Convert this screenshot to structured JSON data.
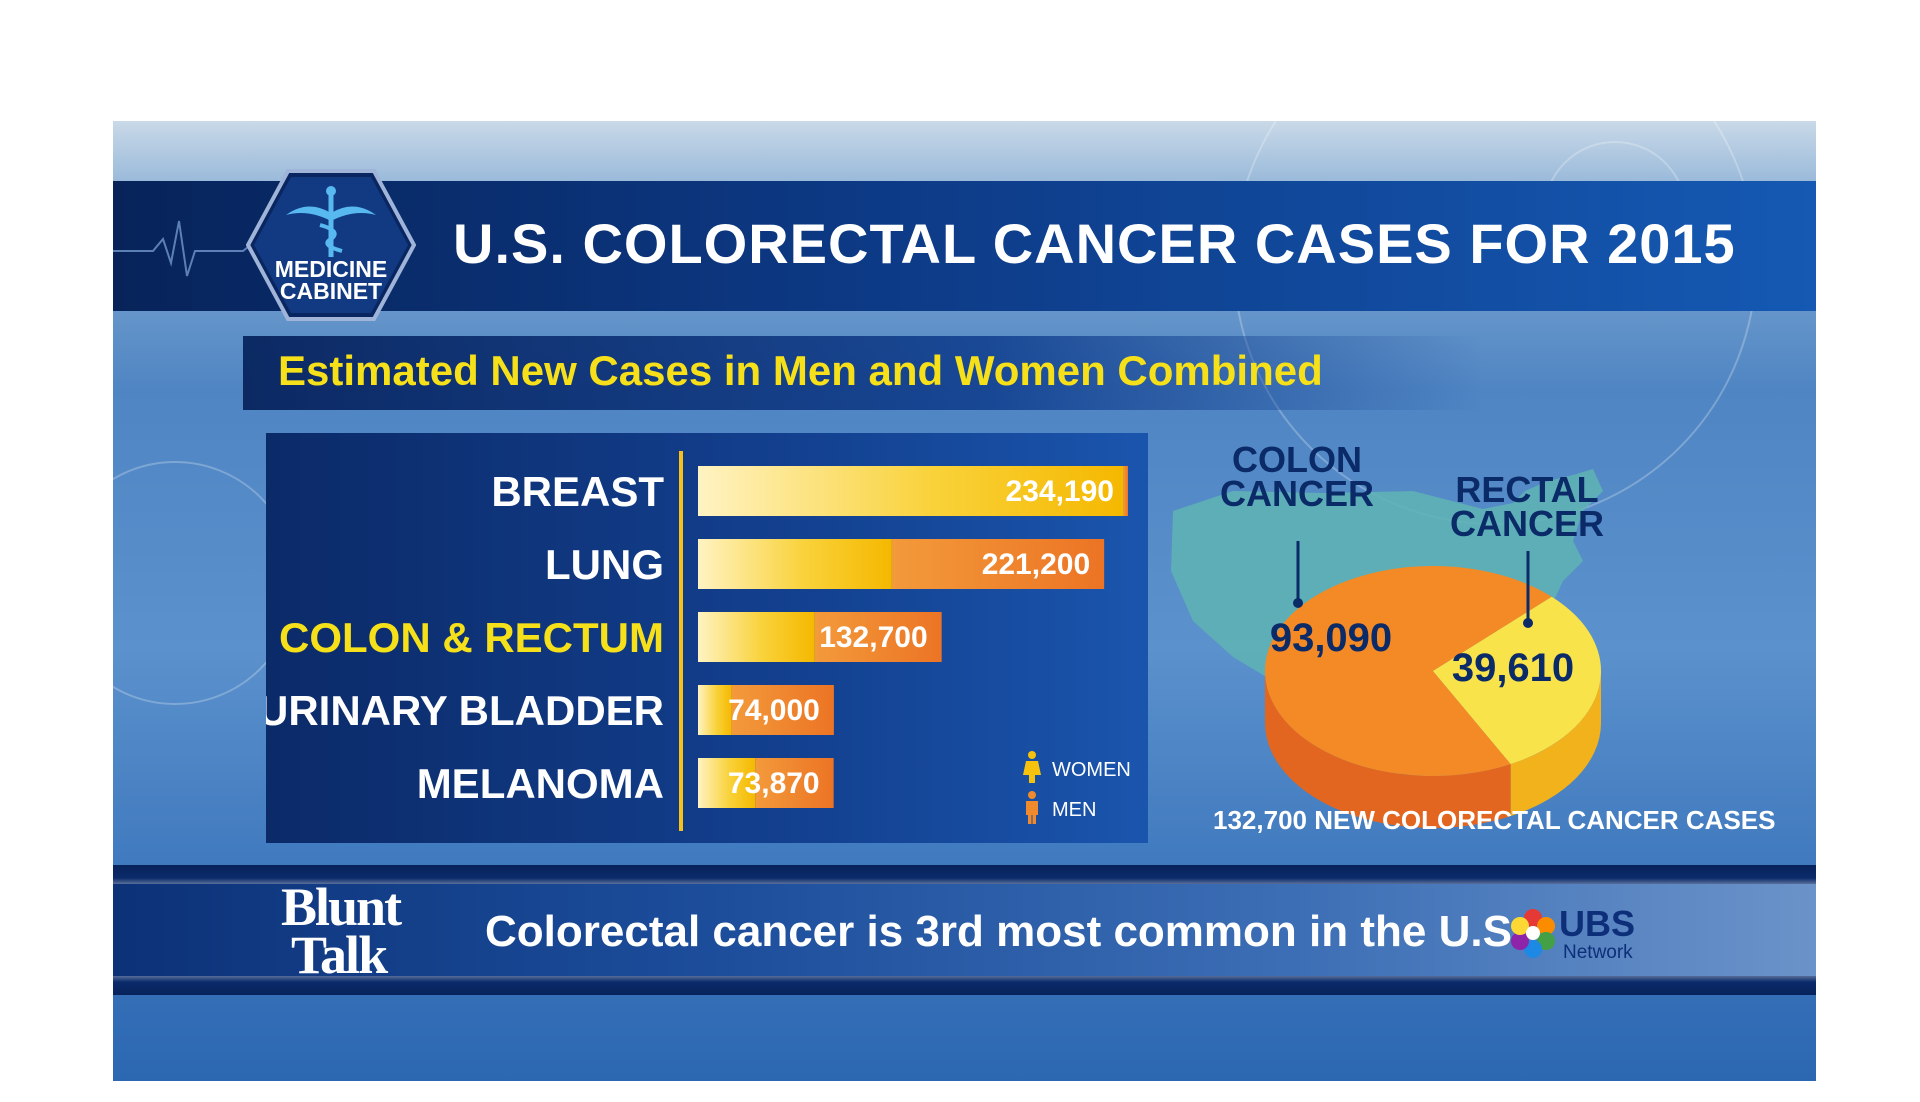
{
  "header": {
    "logo_line1": "MEDICINE",
    "logo_line2": "CABINET",
    "title": "U.S. COLORECTAL CANCER CASES FOR 2015"
  },
  "subtitle": "Estimated New Cases in Men and Women Combined",
  "legend": {
    "women": "WOMEN",
    "men": "MEN"
  },
  "colors": {
    "women": "#f7c20e",
    "men": "#f08a2c",
    "highlight": "#f6e01a",
    "navy": "#0b2a68"
  },
  "chart_data": [
    {
      "type": "bar",
      "orientation": "horizontal",
      "stacked": true,
      "categories": [
        "BREAST",
        "LUNG",
        "COLON & RECTUM",
        "URINARY BLADDER",
        "MELANOMA"
      ],
      "values": [
        234190,
        221200,
        132700,
        74000,
        73870
      ],
      "value_labels": [
        "234,190",
        "221,200",
        "132,700",
        "74,000",
        "73,870"
      ],
      "highlight_category": "COLON & RECTUM",
      "series": [
        {
          "name": "WOMEN",
          "values": [
            231840,
            105590,
            63610,
            18300,
            31200
          ]
        },
        {
          "name": "MEN",
          "values": [
            2350,
            115610,
            69090,
            55700,
            42670
          ]
        }
      ],
      "legend_position": "bottom-right",
      "grid": false
    },
    {
      "type": "pie",
      "labels": [
        "COLON CANCER",
        "RECTAL CANCER"
      ],
      "values": [
        93090,
        39610
      ],
      "value_labels": [
        "93,090",
        "39,610"
      ],
      "colors": [
        "#f48a25",
        "#f9e34a"
      ],
      "caption": "132,700 NEW COLORECTAL CANCER CASES"
    }
  ],
  "footer": {
    "show_logo_line1": "Blunt",
    "show_logo_line2": "Talk",
    "ticker": "Colorectal cancer is 3rd most common in the U.S.",
    "network_name": "UBS",
    "network_sub": "Network"
  }
}
